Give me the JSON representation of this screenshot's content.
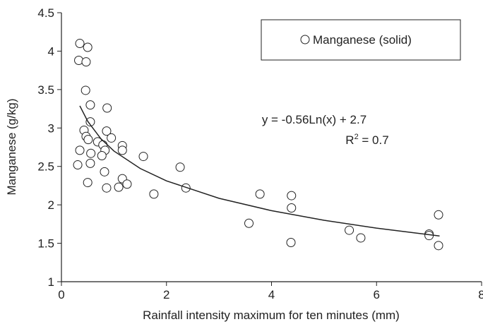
{
  "chart_data": {
    "type": "scatter",
    "xlabel": "Rainfall intensity maximum for ten minutes (mm)",
    "ylabel": "Manganese (g/kg)",
    "xlim": [
      0,
      8
    ],
    "ylim": [
      1,
      4.5
    ],
    "xticks": [
      0,
      2,
      4,
      6,
      8
    ],
    "yticks": [
      1,
      1.5,
      2,
      2.5,
      3,
      3.5,
      4,
      4.5
    ],
    "series": [
      {
        "name": "Manganese (solid)",
        "color": "#222222",
        "x": [
          0.35,
          0.5,
          0.33,
          0.47,
          0.46,
          0.55,
          0.87,
          0.55,
          0.43,
          0.86,
          0.47,
          0.95,
          0.51,
          0.69,
          0.79,
          1.16,
          0.35,
          1.16,
          0.83,
          0.56,
          0.77,
          1.56,
          0.55,
          0.31,
          2.26,
          0.82,
          1.16,
          0.5,
          1.25,
          0.86,
          1.09,
          2.37,
          1.76,
          3.78,
          4.38,
          4.38,
          3.57,
          5.48,
          5.7,
          7.0,
          7.0,
          7.18,
          7.18,
          4.37
        ],
        "values": [
          4.1,
          4.05,
          3.88,
          3.86,
          3.49,
          3.3,
          3.26,
          3.08,
          2.97,
          2.96,
          2.89,
          2.87,
          2.85,
          2.82,
          2.78,
          2.77,
          2.71,
          2.71,
          2.71,
          2.67,
          2.64,
          2.63,
          2.54,
          2.52,
          2.49,
          2.43,
          2.34,
          2.29,
          2.27,
          2.22,
          2.23,
          2.22,
          2.14,
          2.14,
          2.12,
          1.96,
          1.76,
          1.67,
          1.57,
          1.62,
          1.6,
          1.87,
          1.47,
          1.51
        ]
      }
    ],
    "trendline": {
      "color": "#222222",
      "x": [
        0.35,
        0.5,
        0.75,
        1,
        1.5,
        2,
        3,
        4,
        5,
        6,
        7.2
      ],
      "values": [
        3.288,
        3.088,
        2.861,
        2.7,
        2.473,
        2.312,
        2.085,
        1.924,
        1.799,
        1.697,
        1.595
      ]
    },
    "equation": "y = -0.56Ln(x) + 2.7",
    "r_squared": {
      "symbol": "R",
      "exponent": "2",
      "text": " = 0.7"
    },
    "legend": "top-right"
  }
}
